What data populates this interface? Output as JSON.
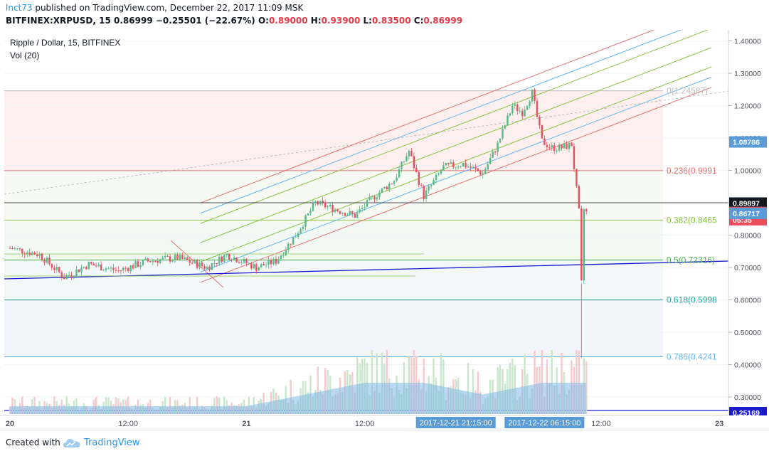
{
  "header": {
    "author": "lnct73",
    "published_text": " published on TradingView.com, December 22, 2017 11:09 MSK",
    "symbol_interval": "BITFINEX:XRPUSD, 15",
    "last": "0.86999",
    "change": "−0.25501 (−22.67%)",
    "o_label": "O:",
    "o_value": "0.89000",
    "h_label": "H:",
    "h_value": "0.93900",
    "l_label": "L:",
    "l_value": "0.83500",
    "c_label": "C:",
    "c_value": "0.86999"
  },
  "legend": {
    "title": "Ripple / Dollar, 15, BITFINEX",
    "volume": "Vol (20)"
  },
  "footer": {
    "created_with": "Created with",
    "brand": "TradingView"
  },
  "colors": {
    "bull": "#53b987",
    "bear": "#eb4d5c",
    "accent": "#2196f3",
    "fib_red": "#e57373",
    "fib_green": "#8bc34a",
    "fib_teal": "#26a69a",
    "fib_blue": "#64b5f6",
    "trendline": "#1a1acd"
  },
  "chart_data": {
    "type": "candlestick",
    "title": "Ripple / Dollar, 15, BITFINEX",
    "symbol": "BITFINEX:XRPUSD",
    "interval": "15",
    "y_ticks": [
      "1.40000",
      "1.30000",
      "1.20000",
      "1.10000",
      "1.00000",
      "0.90000",
      "0.80000",
      "0.70000",
      "0.60000",
      "0.50000",
      "0.40000",
      "0.30000"
    ],
    "x_ticks": [
      {
        "label": "20",
        "x": "2017-12-20 00:00"
      },
      {
        "label": "12:00",
        "x": "2017-12-20 12:00"
      },
      {
        "label": "21",
        "x": "2017-12-21 00:00"
      },
      {
        "label": "12:00",
        "x": "2017-12-21 12:00"
      },
      {
        "label": "12:00",
        "x": "2017-12-22 12:00"
      },
      {
        "label": "23",
        "x": "2017-12-23 00:00"
      },
      {
        "label": "12:00",
        "x": "2017-12-23 12:00"
      }
    ],
    "crosshair_labels": [
      {
        "label": "2017-12-21 21:15:00",
        "x": "2017-12-21 21:15"
      },
      {
        "label": "2017-12-22 06:15:00",
        "x": "2017-12-22 06:15"
      }
    ],
    "price_labels": [
      {
        "value": "1.08786",
        "price": 1.08786,
        "color": "#5b9bd5"
      },
      {
        "value": "0.89897",
        "price": 0.89897,
        "color": "#131722"
      },
      {
        "value": "0.86999",
        "price": 0.86999,
        "color": "#eb4d5c"
      },
      {
        "value": "05:35",
        "price": 0.8475,
        "color": "#eb4d5c"
      },
      {
        "value": "0.86717",
        "price": 0.86717,
        "color": "#5b9bd5"
      },
      {
        "value": "0.25169",
        "price": 0.25169,
        "color": "#1a1acd"
      }
    ],
    "fib_levels": [
      {
        "label": "0(1.24587)",
        "ratio": 0,
        "price": 1.24587,
        "color": "#bdbdbd"
      },
      {
        "label": "0.236(0.9991",
        "ratio": 0.236,
        "price": 0.9991,
        "color": "#e57373"
      },
      {
        "label": "0.382(0.8465",
        "ratio": 0.382,
        "price": 0.8465,
        "color": "#8bc34a"
      },
      {
        "label": "0.5(0.72316)",
        "ratio": 0.5,
        "price": 0.72316,
        "color": "#4caf50"
      },
      {
        "label": "0.618(0.5998",
        "ratio": 0.618,
        "price": 0.5998,
        "color": "#26a69a"
      },
      {
        "label": "0.786(0.4241",
        "ratio": 0.786,
        "price": 0.4241,
        "color": "#64b5f6"
      }
    ],
    "price_path": [
      [
        "2017-12-20 00:00",
        0.76
      ],
      [
        "2017-12-20 03:00",
        0.74
      ],
      [
        "2017-12-20 05:30",
        0.67
      ],
      [
        "2017-12-20 08:00",
        0.71
      ],
      [
        "2017-12-20 11:00",
        0.69
      ],
      [
        "2017-12-20 14:00",
        0.72
      ],
      [
        "2017-12-20 17:00",
        0.73
      ],
      [
        "2017-12-20 20:00",
        0.7
      ],
      [
        "2017-12-20 22:00",
        0.74
      ],
      [
        "2017-12-21 01:00",
        0.7
      ],
      [
        "2017-12-21 03:00",
        0.72
      ],
      [
        "2017-12-21 05:00",
        0.8
      ],
      [
        "2017-12-21 07:00",
        0.9
      ],
      [
        "2017-12-21 09:00",
        0.88
      ],
      [
        "2017-12-21 11:00",
        0.86
      ],
      [
        "2017-12-21 13:00",
        0.92
      ],
      [
        "2017-12-21 15:00",
        0.97
      ],
      [
        "2017-12-21 16:30",
        1.06
      ],
      [
        "2017-12-21 18:00",
        0.92
      ],
      [
        "2017-12-21 20:00",
        1.01
      ],
      [
        "2017-12-21 22:00",
        1.02
      ],
      [
        "2017-12-22 00:00",
        0.99
      ],
      [
        "2017-12-22 01:30",
        1.08
      ],
      [
        "2017-12-22 03:00",
        1.2
      ],
      [
        "2017-12-22 04:00",
        1.18
      ],
      [
        "2017-12-22 05:00",
        1.24
      ],
      [
        "2017-12-22 06:00",
        1.09
      ],
      [
        "2017-12-22 07:00",
        1.07
      ],
      [
        "2017-12-22 08:00",
        1.07
      ],
      [
        "2017-12-22 09:00",
        1.08
      ],
      [
        "2017-12-22 09:45",
        0.87
      ],
      [
        "2017-12-22 10:00",
        0.65
      ],
      [
        "2017-12-22 10:15",
        0.88
      ],
      [
        "2017-12-22 10:30",
        0.87
      ]
    ],
    "volume_path": [
      [
        "2017-12-20 00:00",
        0.02
      ],
      [
        "2017-12-20 12:00",
        0.02
      ],
      [
        "2017-12-21 00:00",
        0.02
      ],
      [
        "2017-12-21 06:00",
        0.05
      ],
      [
        "2017-12-21 12:00",
        0.08
      ],
      [
        "2017-12-21 18:00",
        0.08
      ],
      [
        "2017-12-22 00:00",
        0.05
      ],
      [
        "2017-12-22 06:00",
        0.08
      ],
      [
        "2017-12-22 10:30",
        0.08
      ]
    ]
  }
}
